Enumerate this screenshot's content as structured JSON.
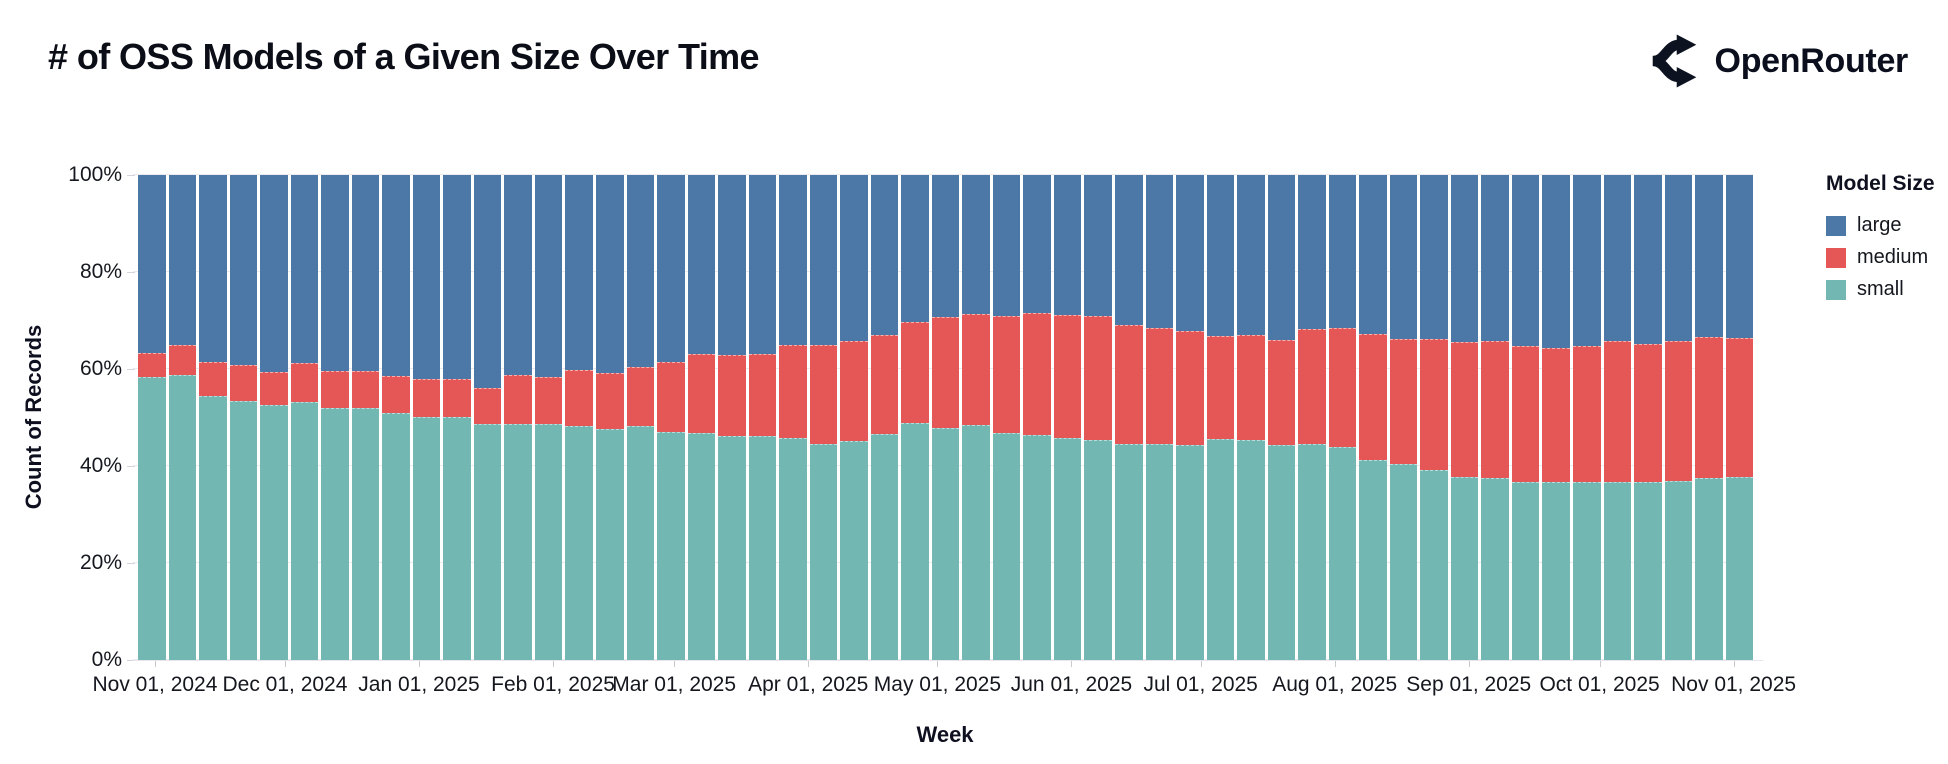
{
  "header": {
    "title": "# of OSS Models of a Given Size Over Time",
    "brand_name": "OpenRouter",
    "brand_icon": "openrouter-logo-icon"
  },
  "colors": {
    "background": "#ffffff",
    "text": "#0e1020",
    "grid": "#eaeaf0",
    "large": "#4c78a8",
    "medium": "#e45756",
    "small": "#72b7b2"
  },
  "chart_data": {
    "type": "bar",
    "variant": "stacked-normalized",
    "bin": "week",
    "title": "# of OSS Models of a Given Size Over Time",
    "xlabel": "Week",
    "ylabel": "Count of Records",
    "grid": true,
    "ylim_pct": [
      0,
      100
    ],
    "y_tick_labels": [
      "0%",
      "20%",
      "40%",
      "60%",
      "80%",
      "100%"
    ],
    "y_tick_pos_pct": [
      0,
      20,
      40,
      60,
      80,
      100
    ],
    "x_tick_labels": [
      "Nov 01, 2024",
      "Dec 01, 2024",
      "Jan 01, 2025",
      "Feb 01, 2025",
      "Mar 01, 2025",
      "Apr 01, 2025",
      "May 01, 2025",
      "Jun 01, 2025",
      "Jul 01, 2025",
      "Aug 01, 2025",
      "Sep 01, 2025",
      "Oct 01, 2025",
      "Nov 01, 2025"
    ],
    "x_tick_pos_pct": [
      1.05,
      9.1,
      17.4,
      25.7,
      33.2,
      41.5,
      49.5,
      57.8,
      65.8,
      74.1,
      82.4,
      90.5,
      98.8
    ],
    "legend": {
      "title": "Model Size",
      "position": "right",
      "entries": [
        {
          "label": "large",
          "color": "#4c78a8"
        },
        {
          "label": "medium",
          "color": "#e45756"
        },
        {
          "label": "small",
          "color": "#72b7b2"
        }
      ]
    },
    "stack_order_bottom_to_top": [
      "small",
      "medium",
      "large"
    ],
    "weeks": [
      {
        "week": "2024-10-27",
        "small": 58.4,
        "medium": 4.8,
        "large": 36.8
      },
      {
        "week": "2024-11-03",
        "small": 58.9,
        "medium": 5.9,
        "large": 35.2
      },
      {
        "week": "2024-11-10",
        "small": 54.5,
        "medium": 6.8,
        "large": 38.7
      },
      {
        "week": "2024-11-17",
        "small": 53.4,
        "medium": 7.2,
        "large": 39.4
      },
      {
        "week": "2024-11-24",
        "small": 52.6,
        "medium": 6.6,
        "large": 40.8
      },
      {
        "week": "2024-12-01",
        "small": 53.2,
        "medium": 7.9,
        "large": 38.9
      },
      {
        "week": "2024-12-08",
        "small": 52.0,
        "medium": 7.4,
        "large": 40.6
      },
      {
        "week": "2024-12-15",
        "small": 52.0,
        "medium": 7.4,
        "large": 40.6
      },
      {
        "week": "2024-12-22",
        "small": 50.9,
        "medium": 7.4,
        "large": 41.7
      },
      {
        "week": "2024-12-29",
        "small": 50.2,
        "medium": 7.6,
        "large": 42.2
      },
      {
        "week": "2025-01-05",
        "small": 50.2,
        "medium": 7.6,
        "large": 42.2
      },
      {
        "week": "2025-01-12",
        "small": 48.6,
        "medium": 7.4,
        "large": 44.0
      },
      {
        "week": "2025-01-19",
        "small": 48.6,
        "medium": 9.9,
        "large": 41.5
      },
      {
        "week": "2025-01-26",
        "small": 48.6,
        "medium": 9.5,
        "large": 41.9
      },
      {
        "week": "2025-02-02",
        "small": 48.3,
        "medium": 11.3,
        "large": 40.4
      },
      {
        "week": "2025-02-09",
        "small": 47.6,
        "medium": 11.4,
        "large": 41.0
      },
      {
        "week": "2025-02-16",
        "small": 48.3,
        "medium": 12.0,
        "large": 39.7
      },
      {
        "week": "2025-02-23",
        "small": 47.1,
        "medium": 14.2,
        "large": 38.7
      },
      {
        "week": "2025-03-02",
        "small": 46.7,
        "medium": 16.2,
        "large": 37.1
      },
      {
        "week": "2025-03-09",
        "small": 46.2,
        "medium": 16.5,
        "large": 37.3
      },
      {
        "week": "2025-03-16",
        "small": 46.2,
        "medium": 16.7,
        "large": 37.1
      },
      {
        "week": "2025-03-23",
        "small": 45.7,
        "medium": 19.1,
        "large": 35.2
      },
      {
        "week": "2025-03-30",
        "small": 44.6,
        "medium": 20.2,
        "large": 35.2
      },
      {
        "week": "2025-04-06",
        "small": 45.1,
        "medium": 20.6,
        "large": 34.3
      },
      {
        "week": "2025-04-13",
        "small": 46.5,
        "medium": 20.4,
        "large": 33.1
      },
      {
        "week": "2025-04-20",
        "small": 48.8,
        "medium": 20.7,
        "large": 30.5
      },
      {
        "week": "2025-04-27",
        "small": 47.8,
        "medium": 22.8,
        "large": 29.4
      },
      {
        "week": "2025-05-04",
        "small": 48.4,
        "medium": 22.8,
        "large": 28.8
      },
      {
        "week": "2025-05-11",
        "small": 46.7,
        "medium": 24.1,
        "large": 29.2
      },
      {
        "week": "2025-05-18",
        "small": 46.4,
        "medium": 25.0,
        "large": 28.6
      },
      {
        "week": "2025-05-25",
        "small": 45.8,
        "medium": 25.3,
        "large": 28.9
      },
      {
        "week": "2025-06-01",
        "small": 45.3,
        "medium": 25.5,
        "large": 29.2
      },
      {
        "week": "2025-06-08",
        "small": 44.5,
        "medium": 24.5,
        "large": 31.0
      },
      {
        "week": "2025-06-15",
        "small": 44.6,
        "medium": 23.7,
        "large": 31.7
      },
      {
        "week": "2025-06-22",
        "small": 44.3,
        "medium": 23.5,
        "large": 32.2
      },
      {
        "week": "2025-06-29",
        "small": 45.5,
        "medium": 21.2,
        "large": 33.3
      },
      {
        "week": "2025-07-06",
        "small": 45.3,
        "medium": 21.6,
        "large": 33.1
      },
      {
        "week": "2025-07-13",
        "small": 44.3,
        "medium": 21.5,
        "large": 34.2
      },
      {
        "week": "2025-07-20",
        "small": 44.5,
        "medium": 23.6,
        "large": 31.9
      },
      {
        "week": "2025-07-27",
        "small": 43.9,
        "medium": 24.4,
        "large": 31.7
      },
      {
        "week": "2025-08-03",
        "small": 41.3,
        "medium": 25.8,
        "large": 32.9
      },
      {
        "week": "2025-08-10",
        "small": 40.4,
        "medium": 25.6,
        "large": 34.0
      },
      {
        "week": "2025-08-17",
        "small": 39.2,
        "medium": 26.8,
        "large": 34.0
      },
      {
        "week": "2025-08-24",
        "small": 37.7,
        "medium": 27.8,
        "large": 34.5
      },
      {
        "week": "2025-08-31",
        "small": 37.4,
        "medium": 28.3,
        "large": 34.3
      },
      {
        "week": "2025-09-07",
        "small": 36.7,
        "medium": 27.9,
        "large": 35.4
      },
      {
        "week": "2025-09-14",
        "small": 36.6,
        "medium": 27.6,
        "large": 35.8
      },
      {
        "week": "2025-09-21",
        "small": 36.7,
        "medium": 27.9,
        "large": 35.4
      },
      {
        "week": "2025-09-28",
        "small": 36.6,
        "medium": 29.1,
        "large": 34.3
      },
      {
        "week": "2025-10-05",
        "small": 36.7,
        "medium": 28.4,
        "large": 34.9
      },
      {
        "week": "2025-10-12",
        "small": 36.9,
        "medium": 28.8,
        "large": 34.3
      },
      {
        "week": "2025-10-19",
        "small": 37.4,
        "medium": 29.1,
        "large": 33.5
      },
      {
        "week": "2025-10-26",
        "small": 37.6,
        "medium": 28.6,
        "large": 33.8
      }
    ]
  }
}
